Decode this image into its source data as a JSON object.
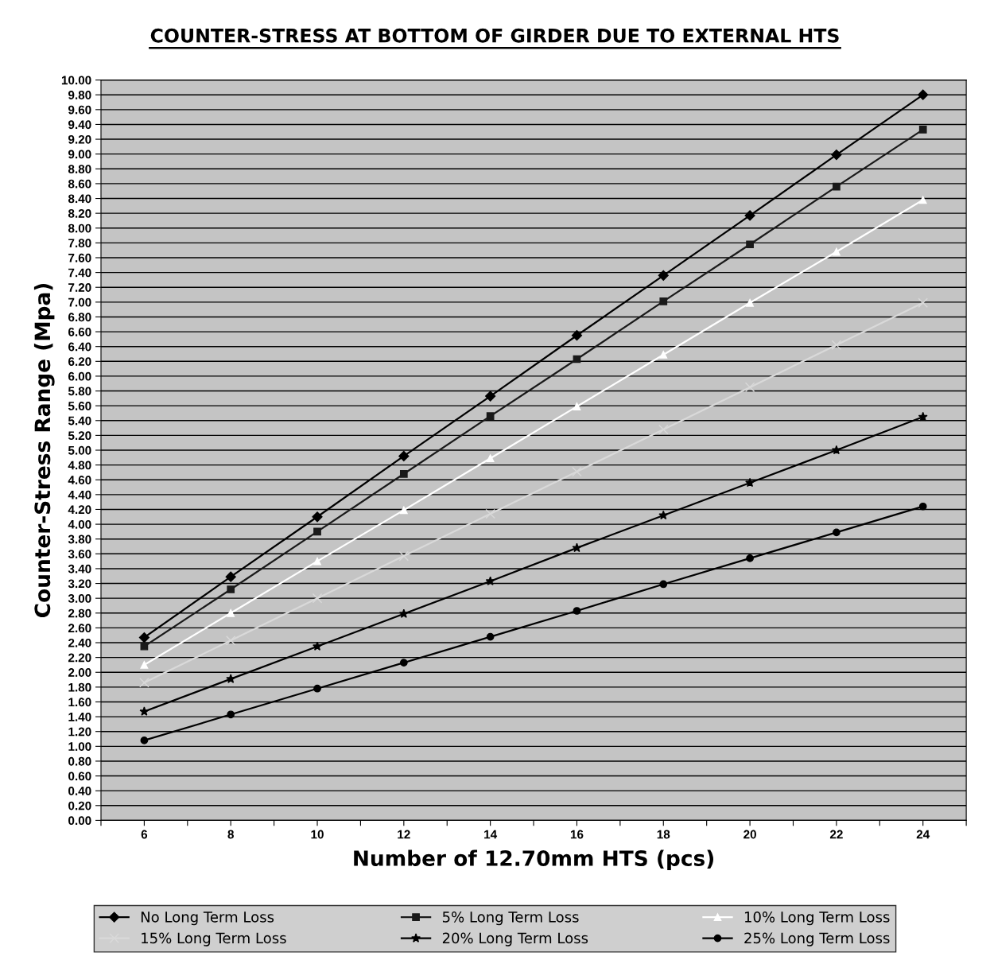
{
  "chart_data": {
    "type": "line",
    "title": "COUNTER-STRESS AT BOTTOM OF GIRDER DUE TO EXTERNAL HTS",
    "xlabel": "Number of 12.70mm HTS (pcs)",
    "ylabel": "Counter-Stress Range (Mpa)",
    "x": [
      6,
      8,
      10,
      12,
      14,
      16,
      18,
      20,
      22,
      24
    ],
    "series": [
      {
        "name": "No Long Term Loss",
        "color": "#000000",
        "marker": "diamond",
        "values": [
          2.47,
          3.29,
          4.1,
          4.92,
          5.73,
          6.55,
          7.36,
          8.17,
          8.99,
          9.8
        ]
      },
      {
        "name": "5% Long Term Loss",
        "color": "#1a1a1a",
        "marker": "square",
        "values": [
          2.35,
          3.12,
          3.9,
          4.68,
          5.46,
          6.23,
          7.01,
          7.78,
          8.56,
          9.33
        ]
      },
      {
        "name": "10% Long Term Loss",
        "color": "#ffffff",
        "marker": "triangle",
        "values": [
          2.1,
          2.8,
          3.5,
          4.19,
          4.89,
          5.59,
          6.29,
          6.99,
          7.68,
          8.38
        ]
      },
      {
        "name": "15% Long Term Loss",
        "color": "#d9d9d9",
        "marker": "cross",
        "values": [
          1.86,
          2.43,
          3.0,
          3.57,
          4.14,
          4.71,
          5.28,
          5.85,
          6.42,
          6.99
        ]
      },
      {
        "name": "20% Long Term Loss",
        "color": "#000000",
        "marker": "star",
        "values": [
          1.47,
          1.91,
          2.35,
          2.79,
          3.23,
          3.68,
          4.12,
          4.56,
          5.0,
          5.45
        ]
      },
      {
        "name": "25% Long Term Loss",
        "color": "#000000",
        "marker": "circle",
        "values": [
          1.08,
          1.43,
          1.78,
          2.13,
          2.48,
          2.83,
          3.19,
          3.54,
          3.89,
          4.24
        ]
      }
    ],
    "xlim": [
      5,
      25
    ],
    "xticks": [
      {
        "value": 5,
        "label": null
      },
      6,
      {
        "value": 7,
        "label": null
      },
      8,
      {
        "value": 9,
        "label": null
      },
      10,
      {
        "value": 11,
        "label": null
      },
      12,
      {
        "value": 13,
        "label": null
      },
      14,
      {
        "value": 15,
        "label": null
      },
      16,
      {
        "value": 17,
        "label": null
      },
      18,
      {
        "value": 19,
        "label": null
      },
      20,
      {
        "value": 21,
        "label": null
      },
      22,
      {
        "value": 23,
        "label": null
      },
      24,
      {
        "value": 25,
        "label": null
      }
    ],
    "ylim": [
      0,
      10
    ],
    "yticks": [
      {
        "value": 0,
        "label": "0.00"
      },
      {
        "value": 0.2,
        "label": "0.20"
      },
      {
        "value": 0.4,
        "label": "0.40"
      },
      {
        "value": 0.6,
        "label": "0.60"
      },
      {
        "value": 0.8,
        "label": "0.80"
      },
      {
        "value": 1,
        "label": "1.00"
      },
      {
        "value": 1.2,
        "label": "1.20"
      },
      {
        "value": 1.4,
        "label": "1.40"
      },
      {
        "value": 1.6,
        "label": "1.60"
      },
      {
        "value": 1.8,
        "label": "1.80"
      },
      {
        "value": 2,
        "label": "2.00"
      },
      {
        "value": 2.2,
        "label": "2.20"
      },
      {
        "value": 2.4,
        "label": "2.40"
      },
      {
        "value": 2.6,
        "label": "2.60"
      },
      {
        "value": 2.8,
        "label": "2.80"
      },
      {
        "value": 3,
        "label": "3.00"
      },
      {
        "value": 3.2,
        "label": "3.20"
      },
      {
        "value": 3.4,
        "label": "3.40"
      },
      {
        "value": 3.6,
        "label": "3.60"
      },
      {
        "value": 3.8,
        "label": "3.80"
      },
      {
        "value": 4,
        "label": "4.00"
      },
      {
        "value": 4.2,
        "label": "4.20"
      },
      {
        "value": 4.4,
        "label": "4.40"
      },
      {
        "value": 4.6,
        "label": "4.60"
      },
      {
        "value": 4.8,
        "label": "4.80"
      },
      {
        "value": 5,
        "label": "5.00"
      },
      {
        "value": 5.2,
        "label": "5.20"
      },
      {
        "value": 5.4,
        "label": "5.40"
      },
      {
        "value": 5.6,
        "label": "5.60"
      },
      {
        "value": 5.8,
        "label": "5.80"
      },
      {
        "value": 6,
        "label": "6.00"
      },
      {
        "value": 6.2,
        "label": "6.20"
      },
      {
        "value": 6.4,
        "label": "6.40"
      },
      {
        "value": 6.6,
        "label": "6.60"
      },
      {
        "value": 6.8,
        "label": "6.80"
      },
      {
        "value": 7,
        "label": "7.00"
      },
      {
        "value": 7.2,
        "label": "7.20"
      },
      {
        "value": 7.4,
        "label": "7.40"
      },
      {
        "value": 7.6,
        "label": "7.60"
      },
      {
        "value": 7.8,
        "label": "7.80"
      },
      {
        "value": 8,
        "label": "8.00"
      },
      {
        "value": 8.2,
        "label": "8.20"
      },
      {
        "value": 8.4,
        "label": "8.40"
      },
      {
        "value": 8.6,
        "label": "8.60"
      },
      {
        "value": 8.8,
        "label": "8.80"
      },
      {
        "value": 9,
        "label": "9.00"
      },
      {
        "value": 9.2,
        "label": "9.20"
      },
      {
        "value": 9.4,
        "label": "9.40"
      },
      {
        "value": 9.6,
        "label": "9.60"
      },
      {
        "value": 9.8,
        "label": "9.80"
      },
      {
        "value": 10,
        "label": "10.00"
      }
    ],
    "grid": "y",
    "legend": "bottom",
    "line_style": "solid"
  }
}
